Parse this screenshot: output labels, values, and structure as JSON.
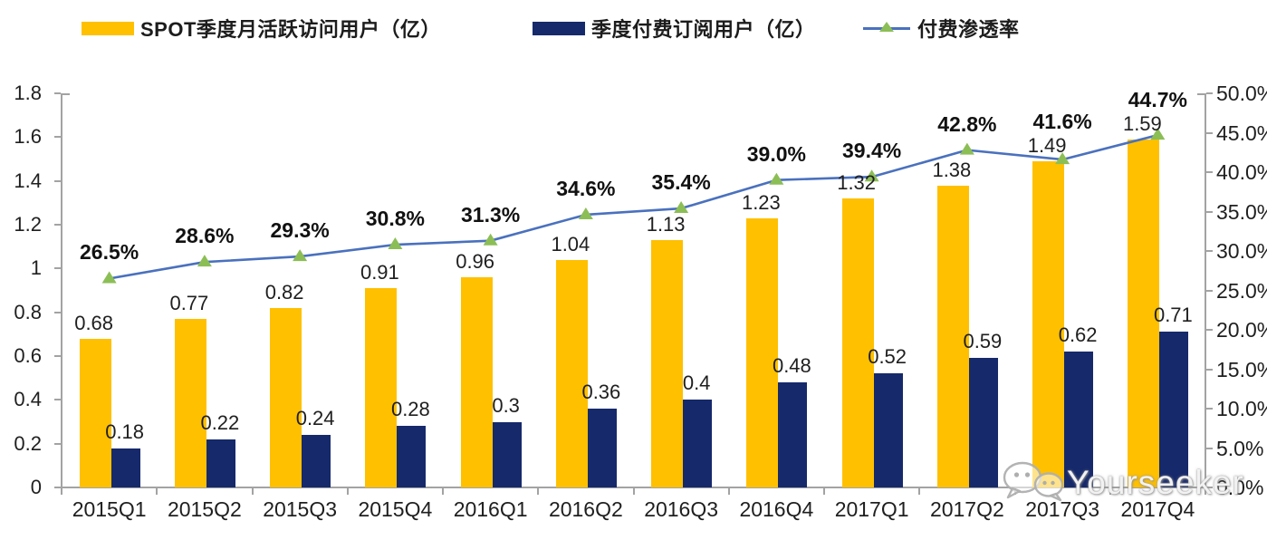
{
  "chart_data": {
    "type": "combo_bar_line",
    "title": "",
    "categories": [
      "2015Q1",
      "2015Q2",
      "2015Q3",
      "2015Q4",
      "2016Q1",
      "2016Q2",
      "2016Q3",
      "2016Q4",
      "2017Q1",
      "2017Q2",
      "2017Q3",
      "2017Q4"
    ],
    "series": [
      {
        "name": "SPOT季度月活跃访问用户（亿）",
        "type": "bar",
        "axis": "left",
        "color": "#FFC000",
        "values": [
          0.68,
          0.77,
          0.82,
          0.91,
          0.96,
          1.04,
          1.13,
          1.23,
          1.32,
          1.38,
          1.49,
          1.59
        ],
        "labels": [
          "0.68",
          "0.77",
          "0.82",
          "0.91",
          "0.96",
          "1.04",
          "1.13",
          "1.23",
          "1.32",
          "1.38",
          "1.49",
          "1.59"
        ]
      },
      {
        "name": "季度付费订阅用户（亿）",
        "type": "bar",
        "axis": "left",
        "color": "#16296B",
        "values": [
          0.18,
          0.22,
          0.24,
          0.28,
          0.3,
          0.36,
          0.4,
          0.48,
          0.52,
          0.59,
          0.62,
          0.71
        ],
        "labels": [
          "0.18",
          "0.22",
          "0.24",
          "0.28",
          "0.3",
          "0.36",
          "0.4",
          "0.48",
          "0.52",
          "0.59",
          "0.62",
          "0.71"
        ]
      },
      {
        "name": "付费渗透率",
        "type": "line",
        "axis": "right",
        "color": "#4A71BE",
        "marker": "triangle",
        "marker_color": "#8CBE56",
        "values": [
          26.5,
          28.6,
          29.3,
          30.8,
          31.3,
          34.6,
          35.4,
          39.0,
          39.4,
          42.8,
          41.6,
          44.7
        ],
        "labels": [
          "26.5%",
          "28.6%",
          "29.3%",
          "30.8%",
          "31.3%",
          "34.6%",
          "35.4%",
          "39.0%",
          "39.4%",
          "42.8%",
          "41.6%",
          "44.7%"
        ]
      }
    ],
    "left_axis": {
      "min": 0,
      "max": 1.8,
      "step": 0.2,
      "tick_labels": [
        "0",
        "0.2",
        "0.4",
        "0.6",
        "0.8",
        "1",
        "1.2",
        "1.4",
        "1.6",
        "1.8"
      ]
    },
    "right_axis": {
      "min": 0,
      "max": 50,
      "step": 5,
      "tick_labels": [
        "0.0%",
        "5.0%",
        "10.0%",
        "15.0%",
        "20.0%",
        "25.0%",
        "30.0%",
        "35.0%",
        "40.0%",
        "45.0%",
        "50.0%"
      ]
    },
    "legend_position": "top",
    "grid": false,
    "axis_color": "#A3A3A3",
    "text_color": "#1F1F1F"
  },
  "watermark": {
    "text": "Yourseeker",
    "icon": "wechat-icon"
  }
}
